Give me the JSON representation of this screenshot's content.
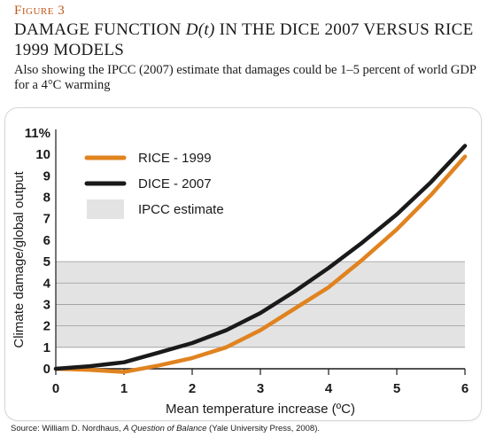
{
  "figure_label": "Figure 3",
  "title_part1": "DAMAGE FUNCTION ",
  "title_italic": "D(t)",
  "title_part2": " IN THE DICE 2007 VERSUS RICE 1999 MODELS",
  "subtitle": "Also showing the IPCC (2007) estimate that damages could be 1–5 percent of world GDP for a 4°C warming",
  "source": {
    "prefix": "Source: William D. Nordhaus, ",
    "book": "A Question of Balance",
    "suffix": " (Yale University Press, 2008)."
  },
  "colors": {
    "rice": "#e0831f",
    "dice": "#1a1a1a",
    "ipcc_band": "#e3e3e3",
    "grid": "#9a9a9a"
  },
  "chart_data": {
    "type": "line",
    "xlabel": "Mean temperature increase (ºC)",
    "ylabel": "Climate damage/global output",
    "xlim": [
      0,
      6
    ],
    "ylim": [
      0,
      11
    ],
    "x_ticks": [
      "0",
      "1",
      "2",
      "3",
      "4",
      "5",
      "6"
    ],
    "y_ticks": [
      "0",
      "1",
      "2",
      "3",
      "4",
      "5",
      "6",
      "7",
      "8",
      "9",
      "10",
      "11%"
    ],
    "bands": [
      {
        "name": "IPCC estimate",
        "y_from": 1,
        "y_to": 5
      }
    ],
    "series": [
      {
        "name": "RICE - 1999",
        "color": "#e0831f",
        "x": [
          0,
          0.5,
          1,
          1.5,
          2,
          2.5,
          3,
          3.5,
          4,
          4.5,
          5,
          5.5,
          6
        ],
        "y": [
          0,
          -0.05,
          -0.15,
          0.15,
          0.5,
          1.0,
          1.8,
          2.8,
          3.8,
          5.1,
          6.5,
          8.1,
          9.9
        ]
      },
      {
        "name": "DICE - 2007",
        "color": "#1a1a1a",
        "x": [
          0,
          0.5,
          1,
          1.5,
          2,
          2.5,
          3,
          3.5,
          4,
          4.5,
          5,
          5.5,
          6
        ],
        "y": [
          0,
          0.12,
          0.3,
          0.75,
          1.2,
          1.8,
          2.6,
          3.6,
          4.7,
          5.9,
          7.2,
          8.7,
          10.4
        ]
      }
    ],
    "legend": [
      {
        "label": "RICE - 1999",
        "kind": "line",
        "color": "#e0831f"
      },
      {
        "label": "DICE - 2007",
        "kind": "line",
        "color": "#1a1a1a"
      },
      {
        "label": "IPCC estimate",
        "kind": "band",
        "color": "#e3e3e3"
      }
    ],
    "legend_position": "top-left",
    "grid": true
  }
}
